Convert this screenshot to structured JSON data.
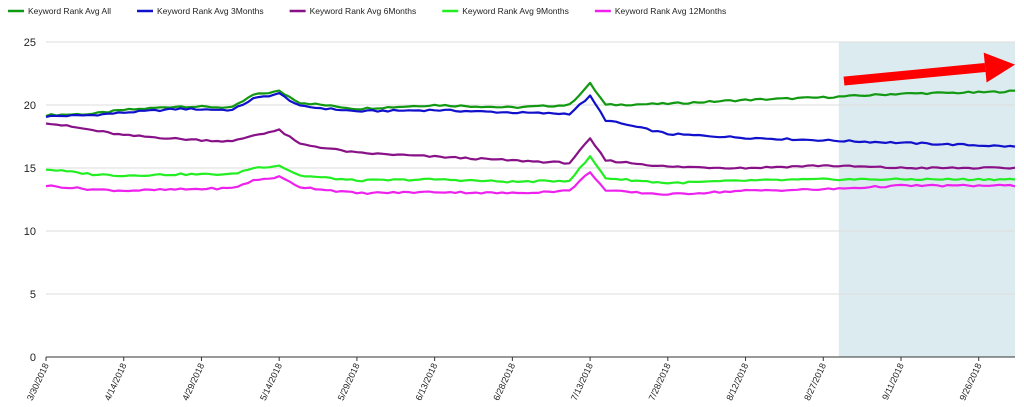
{
  "chart_data": {
    "type": "line",
    "legend_position": "top-left",
    "grid": "horizontal",
    "ylim": [
      0,
      25
    ],
    "yticks": [
      0,
      5,
      10,
      15,
      20,
      25
    ],
    "xlim": [
      "2018-03-30",
      "2018-10-03"
    ],
    "x_tick_labels": [
      "3/30/2018",
      "4/14/2018",
      "4/29/2018",
      "5/14/2018",
      "5/29/2018",
      "6/13/2018",
      "6/28/2018",
      "7/13/2018",
      "7/28/2018",
      "8/12/2018",
      "8/27/2018",
      "9/11/2018",
      "9/26/2018"
    ],
    "highlight_range": {
      "start": "2018-08-30",
      "end": "2018-10-03",
      "color": "#dcebf0"
    },
    "trend_arrow": {
      "start": [
        "2018-08-31",
        21.9
      ],
      "end": [
        "2018-10-03",
        23.2
      ],
      "color": "#ff0000"
    },
    "series": [
      {
        "name": "Keyword Rank Avg All",
        "color": "#119911",
        "points": [
          [
            "2018-03-30",
            19.2
          ],
          [
            "2018-04-08",
            19.3
          ],
          [
            "2018-04-14",
            19.6
          ],
          [
            "2018-04-25",
            19.9
          ],
          [
            "2018-05-05",
            19.8
          ],
          [
            "2018-05-09",
            20.8
          ],
          [
            "2018-05-14",
            21.1
          ],
          [
            "2018-05-18",
            20.2
          ],
          [
            "2018-05-29",
            19.7
          ],
          [
            "2018-06-13",
            20.0
          ],
          [
            "2018-06-28",
            19.8
          ],
          [
            "2018-07-09",
            20.0
          ],
          [
            "2018-07-13",
            21.7
          ],
          [
            "2018-07-16",
            20.0
          ],
          [
            "2018-07-28",
            20.1
          ],
          [
            "2018-08-12",
            20.4
          ],
          [
            "2018-08-27",
            20.6
          ],
          [
            "2018-09-11",
            20.9
          ],
          [
            "2018-09-26",
            21.0
          ],
          [
            "2018-10-03",
            21.1
          ]
        ]
      },
      {
        "name": "Keyword Rank Avg 3Months",
        "color": "#1111cc",
        "points": [
          [
            "2018-03-30",
            19.1
          ],
          [
            "2018-04-08",
            19.2
          ],
          [
            "2018-04-14",
            19.4
          ],
          [
            "2018-04-25",
            19.7
          ],
          [
            "2018-05-05",
            19.6
          ],
          [
            "2018-05-09",
            20.5
          ],
          [
            "2018-05-14",
            20.9
          ],
          [
            "2018-05-18",
            19.9
          ],
          [
            "2018-05-29",
            19.5
          ],
          [
            "2018-06-13",
            19.6
          ],
          [
            "2018-06-28",
            19.4
          ],
          [
            "2018-07-09",
            19.3
          ],
          [
            "2018-07-13",
            20.7
          ],
          [
            "2018-07-16",
            18.8
          ],
          [
            "2018-07-28",
            17.7
          ],
          [
            "2018-08-12",
            17.4
          ],
          [
            "2018-08-27",
            17.2
          ],
          [
            "2018-09-11",
            17.0
          ],
          [
            "2018-09-26",
            16.8
          ],
          [
            "2018-10-03",
            16.7
          ]
        ]
      },
      {
        "name": "Keyword Rank Avg 6Months",
        "color": "#881188",
        "points": [
          [
            "2018-03-30",
            18.6
          ],
          [
            "2018-04-05",
            18.2
          ],
          [
            "2018-04-14",
            17.6
          ],
          [
            "2018-04-25",
            17.3
          ],
          [
            "2018-05-05",
            17.1
          ],
          [
            "2018-05-09",
            17.6
          ],
          [
            "2018-05-14",
            18.0
          ],
          [
            "2018-05-18",
            16.9
          ],
          [
            "2018-05-29",
            16.2
          ],
          [
            "2018-06-13",
            15.9
          ],
          [
            "2018-06-28",
            15.6
          ],
          [
            "2018-07-09",
            15.4
          ],
          [
            "2018-07-13",
            17.3
          ],
          [
            "2018-07-16",
            15.6
          ],
          [
            "2018-07-28",
            15.1
          ],
          [
            "2018-08-12",
            15.0
          ],
          [
            "2018-08-27",
            15.2
          ],
          [
            "2018-09-11",
            15.0
          ],
          [
            "2018-09-26",
            15.0
          ],
          [
            "2018-10-03",
            15.0
          ]
        ]
      },
      {
        "name": "Keyword Rank Avg 9Months",
        "color": "#22ee22",
        "points": [
          [
            "2018-03-30",
            14.9
          ],
          [
            "2018-04-08",
            14.5
          ],
          [
            "2018-04-14",
            14.4
          ],
          [
            "2018-04-25",
            14.5
          ],
          [
            "2018-05-05",
            14.5
          ],
          [
            "2018-05-09",
            15.0
          ],
          [
            "2018-05-14",
            15.2
          ],
          [
            "2018-05-18",
            14.4
          ],
          [
            "2018-05-29",
            14.0
          ],
          [
            "2018-06-13",
            14.1
          ],
          [
            "2018-06-28",
            13.9
          ],
          [
            "2018-07-09",
            14.0
          ],
          [
            "2018-07-13",
            15.9
          ],
          [
            "2018-07-16",
            14.2
          ],
          [
            "2018-07-28",
            13.8
          ],
          [
            "2018-08-12",
            14.0
          ],
          [
            "2018-08-27",
            14.1
          ],
          [
            "2018-09-11",
            14.1
          ],
          [
            "2018-09-26",
            14.1
          ],
          [
            "2018-10-03",
            14.1
          ]
        ]
      },
      {
        "name": "Keyword Rank Avg 12Months",
        "color": "#ee22ee",
        "points": [
          [
            "2018-03-30",
            13.6
          ],
          [
            "2018-04-08",
            13.3
          ],
          [
            "2018-04-14",
            13.2
          ],
          [
            "2018-04-25",
            13.3
          ],
          [
            "2018-05-05",
            13.4
          ],
          [
            "2018-05-09",
            14.0
          ],
          [
            "2018-05-14",
            14.3
          ],
          [
            "2018-05-18",
            13.5
          ],
          [
            "2018-05-29",
            13.0
          ],
          [
            "2018-06-13",
            13.1
          ],
          [
            "2018-06-28",
            13.0
          ],
          [
            "2018-07-09",
            13.2
          ],
          [
            "2018-07-13",
            14.7
          ],
          [
            "2018-07-16",
            13.2
          ],
          [
            "2018-07-28",
            12.9
          ],
          [
            "2018-08-12",
            13.2
          ],
          [
            "2018-08-27",
            13.3
          ],
          [
            "2018-09-11",
            13.6
          ],
          [
            "2018-09-26",
            13.6
          ],
          [
            "2018-10-03",
            13.6
          ]
        ]
      }
    ]
  }
}
